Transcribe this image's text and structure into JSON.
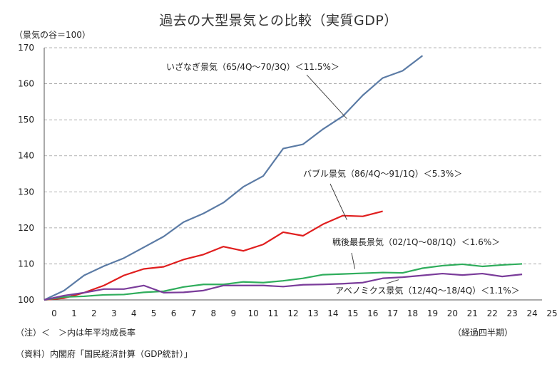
{
  "chart_data": {
    "type": "line",
    "title": "過去の大型景気との比較（実質GDP）",
    "ylabel": "（景気の谷＝100）",
    "xlabel": "（経過四半期）",
    "xlim": [
      0,
      25
    ],
    "ylim": [
      100,
      170
    ],
    "x_ticks": [
      0,
      1,
      2,
      3,
      4,
      5,
      6,
      7,
      8,
      9,
      10,
      11,
      12,
      13,
      14,
      15,
      16,
      17,
      18,
      19,
      20,
      21,
      22,
      23,
      24,
      25
    ],
    "y_ticks": [
      100,
      110,
      120,
      130,
      140,
      150,
      160,
      170
    ],
    "grid": "horizontal-dashed",
    "series": [
      {
        "name": "いざなぎ景気（65/4Q～70/3Q）＜11.5%＞",
        "color": "#5b7ba5",
        "x": [
          0,
          1,
          2,
          3,
          4,
          5,
          6,
          7,
          8,
          9,
          10,
          11,
          12,
          13,
          14,
          15,
          16,
          17,
          18,
          19
        ],
        "values": [
          100,
          102.6,
          106.8,
          109.4,
          111.6,
          114.6,
          117.6,
          121.6,
          124.0,
          127.0,
          131.4,
          134.4,
          142.0,
          143.2,
          147.4,
          151.0,
          156.8,
          161.6,
          163.6,
          167.8
        ]
      },
      {
        "name": "バブル景気（86/4Q～91/1Q）＜5.3%＞",
        "color": "#e01e1e",
        "x": [
          0,
          1,
          2,
          3,
          4,
          5,
          6,
          7,
          8,
          9,
          10,
          11,
          12,
          13,
          14,
          15,
          16,
          17
        ],
        "values": [
          100,
          100.5,
          102.0,
          104.0,
          106.8,
          108.6,
          109.2,
          111.2,
          112.6,
          114.8,
          113.6,
          115.4,
          118.8,
          117.8,
          121.0,
          123.4,
          123.2,
          124.6
        ]
      },
      {
        "name": "戦後最長景気（02/1Q～08/1Q）＜1.6%＞",
        "color": "#2fad5c",
        "x": [
          0,
          1,
          2,
          3,
          4,
          5,
          6,
          7,
          8,
          9,
          10,
          11,
          12,
          13,
          14,
          15,
          16,
          17,
          18,
          19,
          20,
          21,
          22,
          23,
          24
        ],
        "values": [
          100,
          100.8,
          101.0,
          101.4,
          101.5,
          102.1,
          102.4,
          103.6,
          104.3,
          104.3,
          105.0,
          104.8,
          105.3,
          106.0,
          107.0,
          107.2,
          107.4,
          107.6,
          107.5,
          108.8,
          109.5,
          109.9,
          109.3,
          109.7,
          110.0
        ]
      },
      {
        "name": "アベノミクス景気（12/4Q～18/4Q）＜1.1%＞",
        "color": "#7a3c9a",
        "x": [
          0,
          1,
          2,
          3,
          4,
          5,
          6,
          7,
          8,
          9,
          10,
          11,
          12,
          13,
          14,
          15,
          16,
          17,
          18,
          19,
          20,
          21,
          22,
          23,
          24
        ],
        "values": [
          100,
          101.2,
          102.0,
          103.0,
          103.0,
          104.0,
          102.0,
          102.1,
          102.6,
          104.0,
          104.0,
          104.0,
          103.7,
          104.2,
          104.3,
          104.5,
          104.8,
          106.0,
          106.3,
          106.8,
          107.3,
          106.9,
          107.3,
          106.5,
          107.1
        ]
      }
    ],
    "annotations": [
      {
        "text": "いざなぎ景気（65/4Q～70/3Q）＜11.5%＞",
        "series": 0,
        "pointer_x": 15.2,
        "pointer_y": 150.3
      },
      {
        "text": "バブル景気（86/4Q～91/1Q）＜5.3%＞",
        "series": 1,
        "pointer_x": 15.2,
        "pointer_y": 122.2
      },
      {
        "text": "戦後最長景気（02/1Q～08/1Q）＜1.6%＞",
        "series": 2,
        "pointer_x": 15.6,
        "pointer_y": 108.6
      },
      {
        "text": "アベノミクス景気（12/4Q～18/4Q）＜1.1%＞",
        "series": 3,
        "pointer_x": 17.8,
        "pointer_y": 105.6
      }
    ],
    "note": "（注）＜　＞内は年平均成長率",
    "source": "（資料）内閣府「国民経済計算（GDP統計）」"
  }
}
